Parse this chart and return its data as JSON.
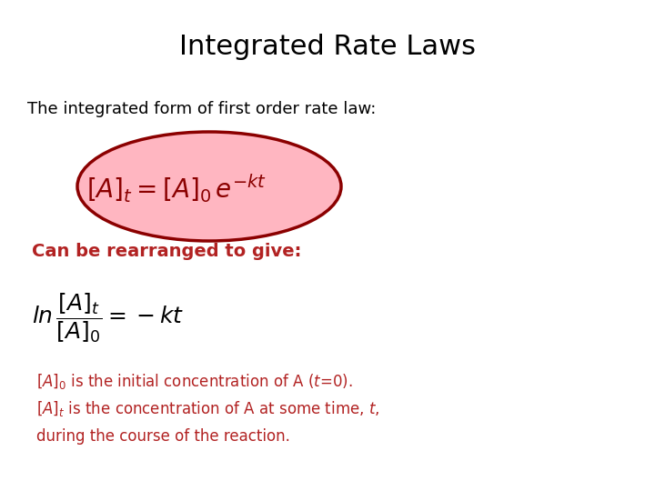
{
  "title": "Integrated Rate Laws",
  "title_fontsize": 22,
  "title_color": "#000000",
  "bg_color": "#ffffff",
  "text1": "The integrated form of first order rate law:",
  "text1_color": "#000000",
  "text1_fontsize": 13,
  "eq1_latex": "$[A]_t = [A]_0\\, e^{-kt}$",
  "eq1_color": "#8B0000",
  "eq1_fontsize": 20,
  "ellipse_facecolor": "#FFB6C1",
  "ellipse_edgecolor": "#8B0000",
  "rearranged_text": "Can be rearranged to give:",
  "rearranged_color": "#B22222",
  "rearranged_fontsize": 14,
  "eq2_latex": "$ln\\,\\dfrac{[A]_t}{[A]_0} = -kt$",
  "eq2_color": "#000000",
  "eq2_fontsize": 18,
  "note1": "$[A]_0$ is the initial concentration of A ($t$=0).",
  "note2": "$[A]_t$ is the concentration of A at some time, $t$,",
  "note3": "during the course of the reaction.",
  "notes_color": "#B22222",
  "notes_fontsize": 12
}
